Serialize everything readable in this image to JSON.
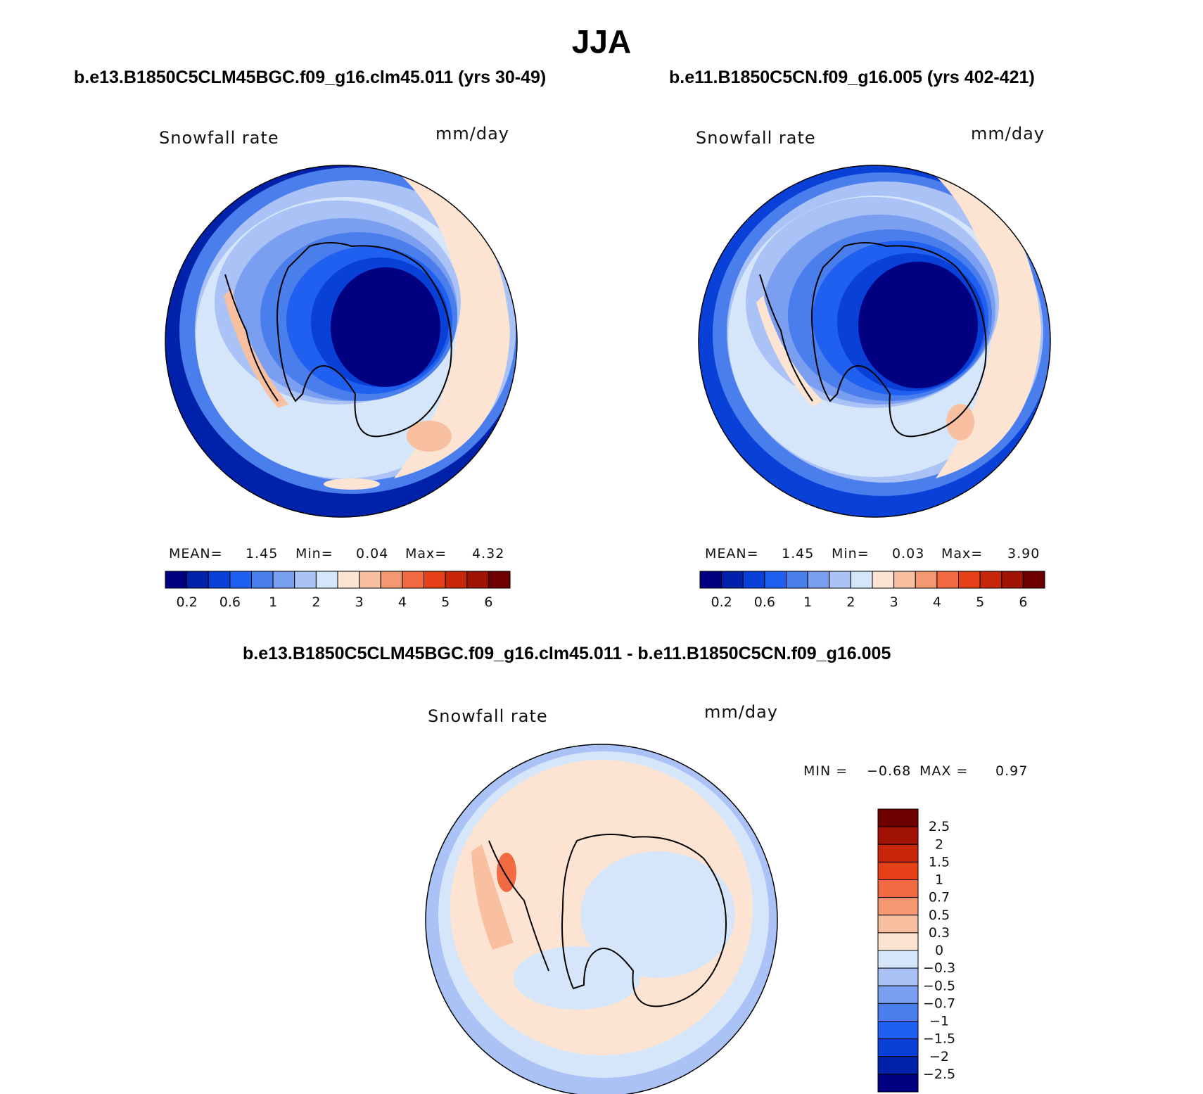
{
  "title": "JJA",
  "panels": [
    {
      "case_title": "b.e13.B1850C5CLM45BGC.f09_g16.clm45.011 (yrs 30-49)",
      "variable": "Snowfall rate",
      "units": "mm/day",
      "stats": {
        "mean_label": "MEAN=",
        "mean": "1.45",
        "min_label": "Min=",
        "min": "0.04",
        "max_label": "Max=",
        "max": "4.32"
      }
    },
    {
      "case_title": "b.e11.B1850C5CN.f09_g16.005 (yrs 402-421)",
      "variable": "Snowfall rate",
      "units": "mm/day",
      "stats": {
        "mean_label": "MEAN=",
        "mean": "1.45",
        "min_label": "Min=",
        "min": "0.03",
        "max_label": "Max=",
        "max": "3.90"
      }
    },
    {
      "case_title": "b.e13.B1850C5CLM45BGC.f09_g16.clm45.011 - b.e11.B1850C5CN.f09_g16.005",
      "variable": "Snowfall rate",
      "units": "mm/day",
      "stats": {
        "min_label": "MIN =",
        "min": "−0.68",
        "max_label": "MAX =",
        "max": "0.97"
      }
    }
  ],
  "colors": {
    "abs_scale": [
      "#000080",
      "#0022aa",
      "#0840d8",
      "#2060f0",
      "#4a7eec",
      "#7a9ef0",
      "#aac2f6",
      "#d6e6fa",
      "#fde4d2",
      "#f8c0a0",
      "#f49872",
      "#f26a42",
      "#e64018",
      "#c8260a",
      "#a01204",
      "#6e0000"
    ],
    "diff_scale": [
      "#000080",
      "#0022aa",
      "#0840d8",
      "#2060f0",
      "#4a7eec",
      "#7a9ef0",
      "#aac2f6",
      "#d6e6fa",
      "#fde4d2",
      "#f8c0a0",
      "#f49872",
      "#f26a42",
      "#e64018",
      "#c8260a",
      "#a01204",
      "#6e0000"
    ],
    "land_outline": "#000000"
  },
  "chart_data": [
    {
      "type": "heatmap",
      "projection": "south-polar-stereographic",
      "title": "Snowfall rate",
      "units": "mm/day",
      "colorbar_levels": [
        0.2,
        0.4,
        0.6,
        0.8,
        1,
        1.5,
        2,
        2.5,
        3,
        3.5,
        4,
        4.5,
        5,
        5.5,
        6
      ],
      "colorbar_tick_labels": [
        "0.2",
        "0.6",
        "1",
        "2",
        "3",
        "4",
        "5",
        "6"
      ],
      "mean": 1.45,
      "min": 0.04,
      "max": 4.32
    },
    {
      "type": "heatmap",
      "projection": "south-polar-stereographic",
      "title": "Snowfall rate",
      "units": "mm/day",
      "colorbar_levels": [
        0.2,
        0.4,
        0.6,
        0.8,
        1,
        1.5,
        2,
        2.5,
        3,
        3.5,
        4,
        4.5,
        5,
        5.5,
        6
      ],
      "colorbar_tick_labels": [
        "0.2",
        "0.6",
        "1",
        "2",
        "3",
        "4",
        "5",
        "6"
      ],
      "mean": 1.45,
      "min": 0.03,
      "max": 3.9
    },
    {
      "type": "heatmap",
      "projection": "south-polar-stereographic",
      "title": "Snowfall rate",
      "units": "mm/day",
      "colorbar_levels": [
        -2.5,
        -2,
        -1.5,
        -1,
        -0.7,
        -0.5,
        -0.3,
        0,
        0.3,
        0.5,
        0.7,
        1,
        1.5,
        2,
        2.5
      ],
      "colorbar_tick_labels": [
        "2.5",
        "2",
        "1.5",
        "1",
        "0.7",
        "0.5",
        "0.3",
        "0",
        "−0.3",
        "−0.5",
        "−0.7",
        "−1",
        "−1.5",
        "−2",
        "−2.5"
      ],
      "min": -0.68,
      "max": 0.97
    }
  ]
}
